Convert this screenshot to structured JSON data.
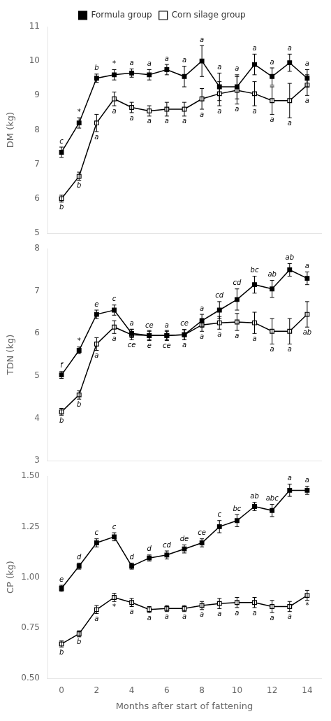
{
  "chart_data": [
    {
      "type": "line",
      "x": [
        0,
        1,
        2,
        3,
        4,
        5,
        6,
        7,
        8,
        9,
        10,
        11,
        12,
        13,
        14
      ],
      "xlim": [
        -0.8,
        14.8
      ],
      "xticks": [
        0,
        2,
        4,
        6,
        8,
        10,
        12,
        14
      ],
      "ylim": [
        5,
        11
      ],
      "yticks": [
        5,
        6,
        7,
        8,
        9,
        10,
        11
      ],
      "ylabel": "DM (kg)",
      "grid": false,
      "legend": "top",
      "tick_labels": "y",
      "series": [
        {
          "name": "Formula group",
          "color": "#000000",
          "marker": "square",
          "line_style": "solid",
          "values": [
            7.35,
            8.2,
            9.5,
            9.6,
            9.65,
            9.6,
            9.75,
            9.55,
            10.0,
            9.25,
            9.25,
            9.9,
            9.55,
            9.95,
            9.5
          ],
          "errors": [
            0.15,
            0.15,
            0.12,
            0.15,
            0.12,
            0.15,
            0.15,
            0.3,
            0.45,
            0.4,
            0.35,
            0.3,
            0.25,
            0.25,
            0.25
          ],
          "point_labels": [
            "c",
            "*",
            "b",
            "*",
            "a",
            "a",
            "a",
            "a",
            "a",
            "a",
            "a",
            "a",
            "a",
            "a",
            "a"
          ]
        },
        {
          "name": "Corn silage group",
          "color": "#000000",
          "marker": "open_square",
          "line_style": "solid",
          "values": [
            6.0,
            6.65,
            8.2,
            8.9,
            8.65,
            8.55,
            8.6,
            8.6,
            8.9,
            9.05,
            9.15,
            9.05,
            8.85,
            8.85,
            9.3
          ],
          "errors": [
            0.1,
            0.12,
            0.25,
            0.2,
            0.15,
            0.15,
            0.2,
            0.2,
            0.3,
            0.35,
            0.4,
            0.35,
            0.4,
            0.5,
            0.3
          ],
          "point_labels": [
            "b",
            "b",
            "a",
            "a",
            "a",
            "a",
            "a",
            "a",
            "a",
            "a",
            "a",
            "a",
            "a",
            "a",
            "a"
          ]
        }
      ]
    },
    {
      "type": "line",
      "x": [
        0,
        1,
        2,
        3,
        4,
        5,
        6,
        7,
        8,
        9,
        10,
        11,
        12,
        13,
        14
      ],
      "xlim": [
        -0.8,
        14.8
      ],
      "xticks": [
        0,
        2,
        4,
        6,
        8,
        10,
        12,
        14
      ],
      "ylim": [
        3,
        8
      ],
      "yticks": [
        3,
        4,
        5,
        6,
        7,
        8
      ],
      "ylabel": "TDN (kg)",
      "grid": false,
      "tick_labels": "y",
      "series": [
        {
          "name": "Formula group",
          "color": "#000000",
          "marker": "square",
          "line_style": "solid",
          "values": [
            5.02,
            5.6,
            6.45,
            6.55,
            6.0,
            5.95,
            5.95,
            5.97,
            6.3,
            6.55,
            6.8,
            7.15,
            7.05,
            7.5,
            7.3
          ],
          "errors": [
            0.08,
            0.08,
            0.1,
            0.12,
            0.1,
            0.1,
            0.1,
            0.12,
            0.15,
            0.2,
            0.25,
            0.2,
            0.2,
            0.15,
            0.15
          ],
          "point_labels": [
            "f",
            "*",
            "e",
            "c",
            "a",
            "ce",
            "a",
            "ce",
            "a",
            "cd",
            "cd",
            "bc",
            "ab",
            "ab",
            "a"
          ]
        },
        {
          "name": "Corn silage group",
          "color": "#000000",
          "marker": "open_square",
          "line_style": "solid",
          "values": [
            4.15,
            4.55,
            5.75,
            6.15,
            5.97,
            5.95,
            5.95,
            5.97,
            6.2,
            6.25,
            6.27,
            6.25,
            6.05,
            6.05,
            6.45
          ],
          "errors": [
            0.08,
            0.1,
            0.15,
            0.15,
            0.12,
            0.12,
            0.12,
            0.12,
            0.15,
            0.15,
            0.2,
            0.25,
            0.3,
            0.3,
            0.3
          ],
          "point_labels": [
            "b",
            "b",
            "a",
            "a",
            "ce",
            "e",
            "ce",
            "a",
            "a",
            "a",
            "a",
            "a",
            "a",
            "a",
            "ab"
          ]
        }
      ]
    },
    {
      "type": "line",
      "x": [
        0,
        1,
        2,
        3,
        4,
        5,
        6,
        7,
        8,
        9,
        10,
        11,
        12,
        13,
        14
      ],
      "xlim": [
        -0.8,
        14.8
      ],
      "xticks": [
        0,
        2,
        4,
        6,
        8,
        10,
        12,
        14
      ],
      "ylim": [
        0.5,
        1.5
      ],
      "yticks": [
        {
          "value": 0.5,
          "label": "0.50"
        },
        0.75,
        {
          "value": 1.0,
          "label": "1.00"
        },
        1.25,
        {
          "value": 1.5,
          "label": "1.50"
        }
      ],
      "ylabel": "CP (kg)",
      "xlabel": "Months after start of fattening",
      "grid": false,
      "series": [
        {
          "name": "Formula group",
          "color": "#000000",
          "marker": "square",
          "line_style": "solid",
          "values": [
            0.945,
            1.055,
            1.17,
            1.2,
            1.055,
            1.095,
            1.11,
            1.14,
            1.17,
            1.25,
            1.28,
            1.35,
            1.33,
            1.43,
            1.43
          ],
          "errors": [
            0.015,
            0.015,
            0.02,
            0.02,
            0.015,
            0.015,
            0.02,
            0.02,
            0.02,
            0.03,
            0.03,
            0.02,
            0.03,
            0.03,
            0.02
          ],
          "point_labels": [
            "e",
            "d",
            "c",
            "c",
            "d",
            "d",
            "cd",
            "de",
            "ce",
            "c",
            "bc",
            "ab",
            "abc",
            "a",
            "a"
          ]
        },
        {
          "name": "Corn silage group",
          "color": "#000000",
          "marker": "open_square",
          "line_style": "solid",
          "values": [
            0.67,
            0.72,
            0.84,
            0.9,
            0.875,
            0.84,
            0.845,
            0.845,
            0.86,
            0.87,
            0.875,
            0.875,
            0.855,
            0.855,
            0.91
          ],
          "errors": [
            0.015,
            0.015,
            0.02,
            0.02,
            0.02,
            0.015,
            0.015,
            0.015,
            0.02,
            0.025,
            0.025,
            0.025,
            0.03,
            0.025,
            0.025
          ],
          "point_labels": [
            "b",
            "b",
            "a",
            "*",
            "a",
            "a",
            "a",
            "a",
            "a",
            "a",
            "a",
            "a",
            "a",
            "a",
            "*"
          ]
        }
      ]
    }
  ]
}
